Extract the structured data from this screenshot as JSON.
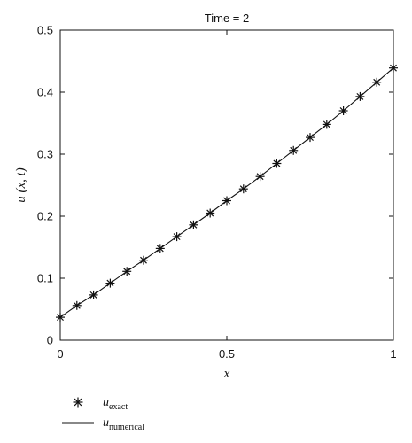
{
  "chart_data": {
    "type": "line",
    "title": "Time = 2",
    "xlabel": "x",
    "ylabel": "u (x, t)",
    "xlim": [
      0,
      1
    ],
    "ylim": [
      0,
      0.5
    ],
    "x_ticks": [
      0,
      0.5,
      1
    ],
    "x_tick_labels": [
      "0",
      "0.5",
      "1"
    ],
    "y_ticks": [
      0,
      0.1,
      0.2,
      0.3,
      0.4,
      0.5
    ],
    "y_tick_labels": [
      "0",
      "0.1",
      "0.2",
      "0.3",
      "0.4",
      "0.5"
    ],
    "grid": false,
    "legend_position": "bottom-left, below plot",
    "series": [
      {
        "name": "u_exact",
        "marker": "asterisk",
        "x": [
          0,
          0.05,
          0.1,
          0.15,
          0.2,
          0.25,
          0.3,
          0.35,
          0.4,
          0.45,
          0.5,
          0.55,
          0.6,
          0.65,
          0.7,
          0.75,
          0.8,
          0.85,
          0.9,
          0.95,
          1.0
        ],
        "values": [
          0.037,
          0.056,
          0.073,
          0.092,
          0.111,
          0.129,
          0.148,
          0.167,
          0.186,
          0.205,
          0.225,
          0.244,
          0.264,
          0.285,
          0.306,
          0.327,
          0.348,
          0.37,
          0.393,
          0.416,
          0.439
        ]
      },
      {
        "name": "u_numerical",
        "marker": "line",
        "x": [
          0,
          0.05,
          0.1,
          0.15,
          0.2,
          0.25,
          0.3,
          0.35,
          0.4,
          0.45,
          0.5,
          0.55,
          0.6,
          0.65,
          0.7,
          0.75,
          0.8,
          0.85,
          0.9,
          0.95,
          1.0
        ],
        "values": [
          0.037,
          0.056,
          0.073,
          0.092,
          0.111,
          0.129,
          0.148,
          0.167,
          0.186,
          0.205,
          0.225,
          0.244,
          0.264,
          0.285,
          0.306,
          0.327,
          0.348,
          0.37,
          0.393,
          0.416,
          0.439
        ]
      }
    ],
    "legend": [
      {
        "symbol": "asterisk",
        "main": "u",
        "sub": "exact"
      },
      {
        "symbol": "line",
        "main": "u",
        "sub": "numerical"
      }
    ],
    "colors": {
      "line": "#111111",
      "marker": "#111111",
      "axes": "#111111"
    }
  }
}
